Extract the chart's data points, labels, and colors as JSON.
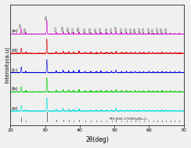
{
  "xlim": [
    20,
    70
  ],
  "xlabel": "2θ(deg)",
  "ylabel": "Intensity(a.u)",
  "background_color": "#f0f0f0",
  "labels": [
    "(a)",
    "(b)",
    "(c)",
    "(d)",
    "(e)"
  ],
  "colors": [
    "#00dddd",
    "#00cc00",
    "#0000dd",
    "#dd0000",
    "#cc00cc"
  ],
  "offsets": [
    0.0,
    0.9,
    1.8,
    2.7,
    3.6
  ],
  "scale": 0.65,
  "pdf_label": "PDF#88-0708MgNb₂O₆",
  "peak_positions": [
    23.1,
    24.4,
    30.5,
    33.2,
    35.2,
    36.8,
    38.2,
    39.8,
    41.5,
    43.2,
    44.8,
    46.1,
    47.8,
    49.2,
    50.5,
    52.1,
    53.5,
    54.8,
    56.0,
    57.3,
    58.5,
    60.0,
    61.2,
    62.5,
    63.8,
    65.0,
    66.2,
    67.5,
    68.8
  ],
  "peak_heights": [
    0.38,
    0.1,
    1.0,
    0.13,
    0.18,
    0.14,
    0.11,
    0.16,
    0.09,
    0.09,
    0.08,
    0.11,
    0.09,
    0.11,
    0.18,
    0.09,
    0.11,
    0.07,
    0.09,
    0.07,
    0.07,
    0.09,
    0.07,
    0.07,
    0.09,
    0.07,
    0.06,
    0.07,
    0.05
  ],
  "ref_peaks": [
    23.1,
    24.4,
    30.5,
    33.2,
    35.2,
    36.8,
    38.2,
    39.8,
    41.5,
    43.2,
    44.8,
    46.1,
    47.8,
    49.2,
    50.5,
    52.1,
    53.5,
    54.8,
    56.0,
    57.3,
    58.5,
    60.0,
    61.2,
    62.5,
    63.8,
    65.0,
    66.2,
    67.5,
    68.8
  ],
  "ref_heights": [
    0.38,
    0.1,
    1.0,
    0.13,
    0.18,
    0.14,
    0.11,
    0.16,
    0.09,
    0.09,
    0.08,
    0.11,
    0.09,
    0.11,
    0.18,
    0.09,
    0.11,
    0.07,
    0.09,
    0.07,
    0.07,
    0.09,
    0.07,
    0.07,
    0.09,
    0.07,
    0.06,
    0.07,
    0.05
  ],
  "hkl_annotations": [
    [
      23.1,
      "(110)"
    ],
    [
      24.4,
      "(020)"
    ],
    [
      30.5,
      "(011)"
    ],
    [
      33.2,
      "(111)"
    ],
    [
      35.2,
      "(130)"
    ],
    [
      36.8,
      "(200)"
    ],
    [
      38.2,
      "(131)"
    ],
    [
      39.8,
      "(040)"
    ],
    [
      41.5,
      "(002)"
    ],
    [
      43.2,
      "(220)"
    ],
    [
      44.8,
      "(041)"
    ],
    [
      46.1,
      "(221)"
    ],
    [
      47.8,
      "(150)"
    ],
    [
      49.2,
      "(311)"
    ],
    [
      50.5,
      "(132)"
    ],
    [
      52.1,
      "(202)"
    ],
    [
      53.5,
      "(312)"
    ],
    [
      54.8,
      "(251)"
    ],
    [
      56.0,
      "(060)"
    ],
    [
      57.3,
      "(421)"
    ],
    [
      58.5,
      "(133)"
    ],
    [
      60.0,
      "(313)"
    ],
    [
      61.2,
      "(170)"
    ],
    [
      62.5,
      "(351)"
    ],
    [
      63.8,
      "(402)"
    ],
    [
      65.0,
      "(004)"
    ]
  ],
  "noise_level": 0.012,
  "fwhm": 0.22
}
